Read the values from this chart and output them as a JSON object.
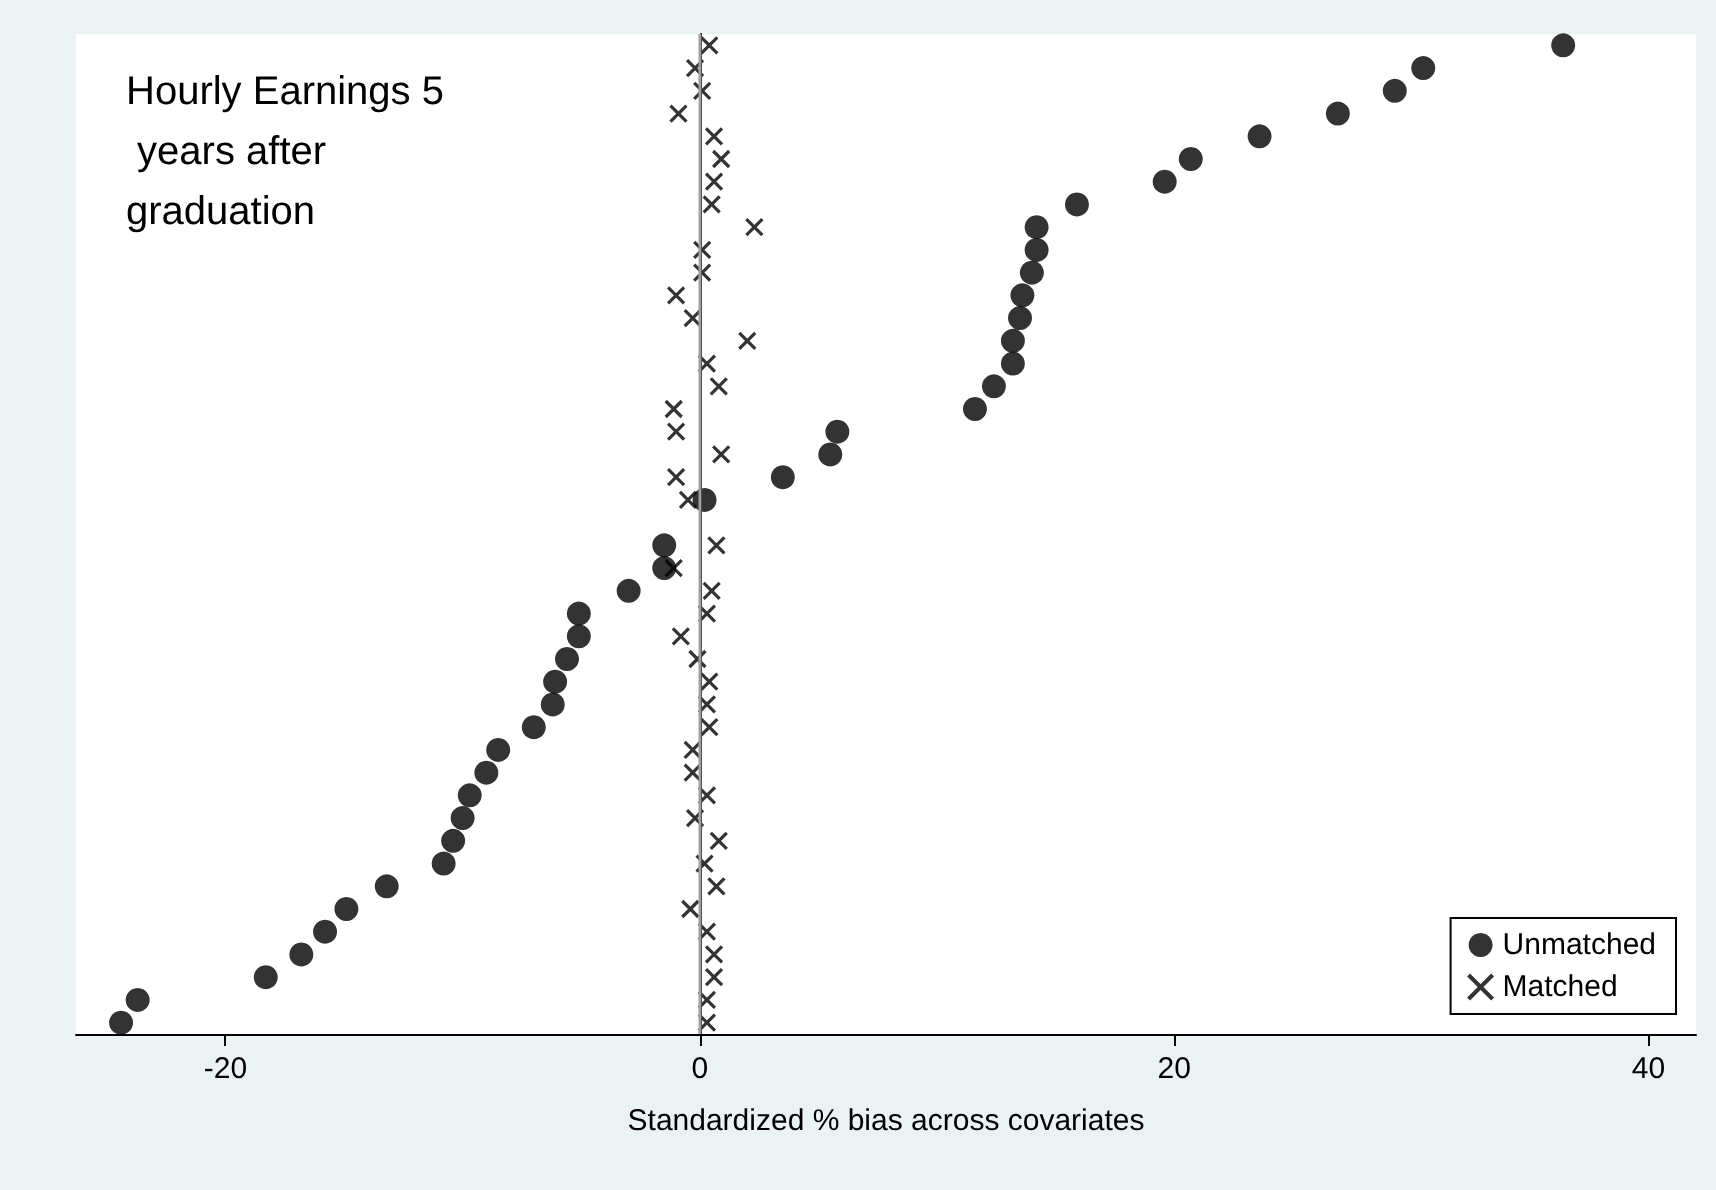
{
  "chart_data": {
    "type": "scatter",
    "orientation": "horizontal",
    "title": "Hourly Earnings 5 years after graduation",
    "xlabel": "Standardized % bias across covariates",
    "categories": [
      null,
      null,
      null,
      null,
      null,
      null,
      null,
      null,
      null,
      null,
      null,
      null,
      null,
      null,
      null,
      null,
      null,
      null,
      null,
      null,
      null,
      null,
      null,
      null,
      null,
      null,
      null,
      null,
      null,
      null,
      null,
      null,
      null,
      null,
      null,
      null,
      null,
      null,
      null,
      null,
      null,
      null,
      null,
      null
    ],
    "series": [
      {
        "name": "Unmatched",
        "color": "#000000",
        "marker": "circle",
        "values": [
          36.4,
          30.5,
          29.3,
          26.9,
          23.6,
          20.7,
          19.6,
          15.9,
          14.2,
          14.2,
          14.0,
          13.6,
          13.5,
          13.2,
          13.2,
          12.4,
          11.6,
          5.8,
          5.5,
          3.5,
          0.2,
          null,
          -1.5,
          -1.5,
          -3.0,
          -5.1,
          -5.1,
          -5.6,
          -6.1,
          -6.2,
          -7.0,
          -8.5,
          -9.0,
          -9.7,
          -10.0,
          -10.4,
          -10.8,
          -13.2,
          -14.9,
          -15.8,
          -16.8,
          -18.3,
          -23.7,
          -24.4
        ]
      },
      {
        "name": "Matched",
        "color": "#000000",
        "marker": "cross",
        "values": [
          0.4,
          -0.2,
          0.1,
          -0.9,
          0.6,
          0.9,
          0.6,
          0.5,
          2.3,
          0.1,
          0.1,
          -1.0,
          -0.3,
          2.0,
          0.3,
          0.8,
          -1.1,
          -1.0,
          0.9,
          -1.0,
          -0.5,
          null,
          0.7,
          -1.1,
          0.5,
          0.3,
          -0.8,
          -0.1,
          0.4,
          0.3,
          0.4,
          -0.3,
          -0.3,
          0.3,
          -0.2,
          0.8,
          0.2,
          0.7,
          -0.4,
          0.3,
          0.6,
          0.6,
          0.3,
          0.3
        ]
      }
    ],
    "xlim": [
      -26.3,
      42
    ],
    "xticks": [
      -20,
      0,
      20,
      40
    ],
    "ref_lines": [
      {
        "axis": "x",
        "value": 0,
        "color": "#a0a0a0"
      }
    ],
    "grid": false,
    "legend": "bottom right",
    "tick_labels": "x"
  }
}
